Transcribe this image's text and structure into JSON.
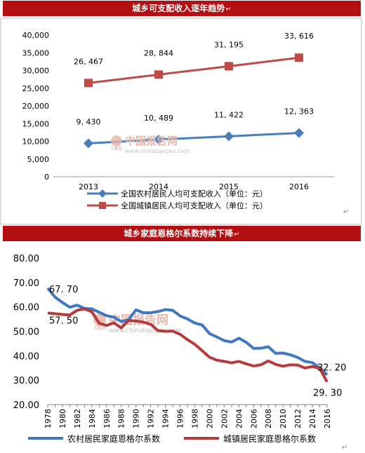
{
  "chart_data": [
    {
      "type": "line",
      "title": "城乡可支配收入逐年趋势",
      "categories": [
        "2013",
        "2014",
        "2015",
        "2016"
      ],
      "ylim": [
        0,
        40000
      ],
      "yticks": [
        "0",
        "5,000",
        "10,000",
        "15,000",
        "20,000",
        "25,000",
        "30,000",
        "35,000",
        "40,000"
      ],
      "legend_position": "bottom",
      "series": [
        {
          "name": "全国农村居民人均可支配收入（单位：元）",
          "color": "#4a7ebb",
          "marker": "diamond",
          "values": [
            9430,
            10489,
            11422,
            12363
          ],
          "labels": [
            "9, 430",
            "10, 489",
            "11, 422",
            "12, 363"
          ]
        },
        {
          "name": "全国城镇居民人均可支配收入（单位：元）",
          "color": "#be4b48",
          "marker": "square",
          "values": [
            26467,
            28844,
            31195,
            33616
          ],
          "labels": [
            "26, 467",
            "28, 844",
            "31, 195",
            "33, 616"
          ]
        }
      ]
    },
    {
      "type": "line",
      "title": "城乡家庭恩格尔系数持续下降",
      "x": [
        1978,
        1979,
        1980,
        1981,
        1982,
        1983,
        1984,
        1985,
        1986,
        1987,
        1988,
        1989,
        1990,
        1991,
        1992,
        1993,
        1994,
        1995,
        1996,
        1997,
        1998,
        1999,
        2000,
        2001,
        2002,
        2003,
        2004,
        2005,
        2006,
        2007,
        2008,
        2009,
        2010,
        2011,
        2012,
        2013,
        2014,
        2015,
        2016
      ],
      "xticks": [
        "1978",
        "1980",
        "1982",
        "1984",
        "1986",
        "1988",
        "1990",
        "1992",
        "1994",
        "1996",
        "1998",
        "2000",
        "2002",
        "2004",
        "2006",
        "2008",
        "2010",
        "2012",
        "2014",
        "2016"
      ],
      "ylim": [
        20,
        80
      ],
      "yticks": [
        "20.00",
        "30.00",
        "40.00",
        "50.00",
        "60.00",
        "70.00",
        "80.00"
      ],
      "legend_position": "bottom",
      "series": [
        {
          "name": "农村居民家庭恩格尔系数",
          "color": "#3f78c0",
          "values": [
            67.7,
            64.0,
            61.8,
            59.9,
            60.7,
            59.4,
            59.2,
            57.8,
            56.4,
            55.8,
            54.0,
            54.8,
            58.8,
            57.6,
            57.6,
            58.1,
            58.9,
            58.6,
            56.3,
            55.1,
            53.4,
            52.6,
            49.1,
            47.7,
            46.2,
            45.6,
            47.2,
            45.5,
            43.0,
            43.1,
            43.7,
            41.0,
            41.1,
            40.4,
            39.3,
            37.7,
            37.2,
            35.0,
            32.2
          ],
          "end_labels": [
            "67. 70",
            "32. 20"
          ]
        },
        {
          "name": "城镇居民家庭恩格尔系数",
          "color": "#b83b3b",
          "values": [
            57.5,
            57.2,
            56.9,
            56.7,
            58.6,
            59.2,
            58.0,
            53.3,
            52.4,
            53.5,
            51.4,
            54.5,
            54.2,
            53.8,
            52.9,
            50.3,
            50.0,
            50.1,
            48.8,
            46.6,
            44.7,
            42.1,
            39.4,
            38.2,
            37.7,
            37.1,
            37.7,
            36.7,
            35.8,
            36.3,
            37.9,
            36.5,
            35.7,
            36.3,
            36.2,
            35.0,
            35.6,
            34.8,
            29.3
          ],
          "end_labels": [
            "57. 50",
            "29. 30"
          ]
        }
      ]
    }
  ],
  "watermark": {
    "brand": "中国报告网",
    "badge": "CBG",
    "url": "www.chinabaogao.com"
  }
}
